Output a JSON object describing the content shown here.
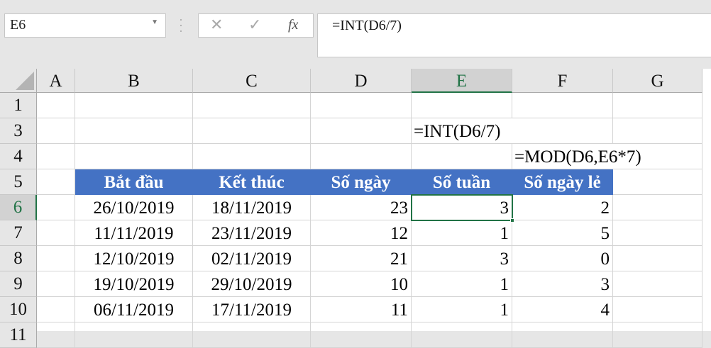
{
  "formula_bar": {
    "name_box": "E6",
    "cancel_icon": "✕",
    "enter_icon": "✓",
    "fx_label": "fx",
    "formula": "=INT(D6/7)"
  },
  "columns": [
    "A",
    "B",
    "C",
    "D",
    "E",
    "F",
    "G"
  ],
  "selected_column": "E",
  "rows": [
    "1",
    "3",
    "4",
    "5",
    "6",
    "7",
    "8",
    "9",
    "10",
    "11"
  ],
  "selected_row": "6",
  "annotations": {
    "e3": "=INT(D6/7)",
    "f4": "=MOD(D6,E6*7)"
  },
  "table": {
    "headers": [
      "Bắt đầu",
      "Kết thúc",
      "Số ngày",
      "Số tuần",
      "Số ngày lẻ"
    ],
    "rows": [
      [
        "26/10/2019",
        "18/11/2019",
        "23",
        "3",
        "2"
      ],
      [
        "11/11/2019",
        "23/11/2019",
        "12",
        "1",
        "5"
      ],
      [
        "12/10/2019",
        "02/11/2019",
        "21",
        "3",
        "0"
      ],
      [
        "19/10/2019",
        "29/10/2019",
        "10",
        "1",
        "3"
      ],
      [
        "06/11/2019",
        "17/11/2019",
        "11",
        "1",
        "4"
      ]
    ]
  },
  "colors": {
    "header_fill": "#4472c4",
    "selection": "#217346"
  }
}
